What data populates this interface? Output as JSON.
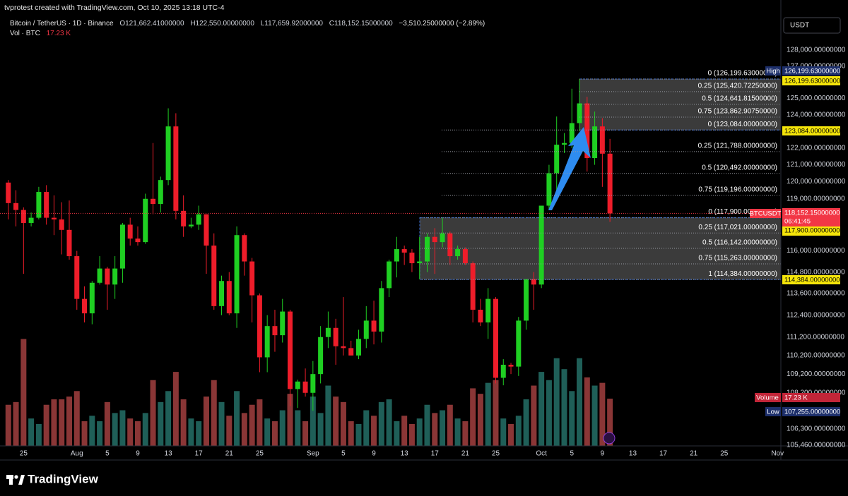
{
  "chart_data": {
    "type": "candlestick",
    "header": {
      "watermark": "tvprotest created with TradingView.com, Oct 10, 2025 13:18 UTC-4",
      "symbol": "Bitcoin / TetherUS · 1D · Binance",
      "open": "O121,662.41000000",
      "high": "H122,550.00000000",
      "low": "L117,659.92000000",
      "close": "C118,152.15000000",
      "change": "−3,510.25000000 (−2.89%)",
      "volume_label": "Vol · BTC",
      "volume_value": "17.23 K"
    },
    "currency_button": "USDT",
    "x": [
      "07-23",
      "07-24",
      "07-25",
      "07-26",
      "07-27",
      "07-28",
      "07-29",
      "07-30",
      "07-31",
      "08-01",
      "08-02",
      "08-03",
      "08-04",
      "08-05",
      "08-06",
      "08-07",
      "08-08",
      "08-09",
      "08-10",
      "08-11",
      "08-12",
      "08-13",
      "08-14",
      "08-15",
      "08-16",
      "08-17",
      "08-18",
      "08-19",
      "08-20",
      "08-21",
      "08-22",
      "08-23",
      "08-24",
      "08-25",
      "08-26",
      "08-27",
      "08-28",
      "08-29",
      "08-30",
      "08-31",
      "09-01",
      "09-02",
      "09-03",
      "09-04",
      "09-05",
      "09-06",
      "09-07",
      "09-08",
      "09-09",
      "09-10",
      "09-11",
      "09-12",
      "09-13",
      "09-14",
      "09-15",
      "09-16",
      "09-17",
      "09-18",
      "09-19",
      "09-20",
      "09-21",
      "09-22",
      "09-23",
      "09-24",
      "09-25",
      "09-26",
      "09-27",
      "09-28",
      "09-29",
      "09-30",
      "10-01",
      "10-02",
      "10-03",
      "10-04",
      "10-05",
      "10-06",
      "10-07",
      "10-08",
      "10-09",
      "10-10"
    ],
    "open": [
      119950,
      118750,
      118350,
      117600,
      117900,
      119400,
      117900,
      117800,
      117200,
      115700,
      113300,
      112500,
      114200,
      115000,
      114100,
      115000,
      117500,
      116700,
      116500,
      119000,
      118700,
      120100,
      123300,
      118300,
      117400,
      117500,
      118100,
      116300,
      112900,
      114300,
      112500,
      116900,
      115400,
      113500,
      110100,
      111800,
      111300,
      112600,
      108400,
      108800,
      108200,
      109200,
      111200,
      111700,
      110700,
      110600,
      110200,
      111100,
      112100,
      111500,
      113900,
      115400,
      116100,
      115900,
      115300,
      115400,
      116800,
      116500,
      117000,
      115700,
      116100,
      115300,
      112700,
      112000,
      113300,
      109000,
      109700,
      109600,
      112100,
      114400,
      114100,
      118600,
      120500,
      122200,
      122300,
      123500,
      124700,
      121400,
      123300,
      121662.41
    ],
    "high": [
      120100,
      119500,
      118500,
      118200,
      119700,
      119800,
      119200,
      118800,
      118900,
      116000,
      114000,
      114300,
      115700,
      115100,
      115700,
      117600,
      117900,
      117400,
      119300,
      122300,
      120300,
      124400,
      124100,
      119200,
      117900,
      118600,
      118100,
      117000,
      114600,
      114800,
      117400,
      117000,
      115600,
      113600,
      112400,
      112700,
      113300,
      112700,
      108900,
      109500,
      109900,
      111800,
      112600,
      112200,
      113400,
      111000,
      111600,
      112900,
      113200,
      114300,
      115500,
      116800,
      116300,
      116100,
      116800,
      117000,
      117300,
      117900,
      117100,
      116300,
      116200,
      115400,
      113300,
      113900,
      113400,
      110000,
      109800,
      112300,
      114400,
      114800,
      118600,
      121000,
      123900,
      122900,
      125600,
      126199.63,
      125100,
      124200,
      123800,
      122550
    ],
    "low": [
      117800,
      117400,
      114700,
      117400,
      117800,
      117500,
      116900,
      115800,
      115500,
      112700,
      112000,
      111900,
      114100,
      112700,
      113300,
      114200,
      116300,
      116300,
      116400,
      118100,
      118200,
      119800,
      117800,
      116800,
      117300,
      117200,
      114700,
      112700,
      112400,
      112400,
      111700,
      114600,
      112000,
      109300,
      109300,
      110400,
      110900,
      107500,
      107400,
      108000,
      107255,
      108700,
      110600,
      109700,
      110200,
      110200,
      110000,
      110600,
      110800,
      110900,
      113400,
      114500,
      115200,
      114800,
      114400,
      114800,
      114700,
      116200,
      115200,
      115500,
      115200,
      112000,
      111800,
      111100,
      108700,
      108600,
      109200,
      109100,
      111600,
      112700,
      113900,
      118400,
      119300,
      121700,
      122000,
      123000,
      120600,
      121000,
      119700,
      117659.92
    ],
    "close": [
      118750,
      118350,
      117600,
      117900,
      119400,
      117900,
      117800,
      117200,
      115700,
      113300,
      112500,
      114200,
      115000,
      114100,
      115000,
      117500,
      116700,
      116500,
      119000,
      118700,
      120100,
      123300,
      118300,
      117400,
      117500,
      118100,
      116300,
      112900,
      114300,
      112500,
      116900,
      115400,
      113500,
      110100,
      111800,
      111300,
      112600,
      108400,
      108800,
      108200,
      109200,
      111200,
      111700,
      110700,
      110600,
      110200,
      111100,
      112100,
      111500,
      113900,
      115400,
      116100,
      115900,
      115300,
      115400,
      116800,
      116500,
      117000,
      115700,
      116100,
      115300,
      112700,
      112000,
      113300,
      109000,
      109700,
      109600,
      112100,
      114400,
      114100,
      118600,
      120500,
      122200,
      122300,
      123500,
      124700,
      121400,
      123300,
      121662.41,
      118152.15
    ],
    "volume": [
      15,
      16,
      39,
      10,
      8,
      15,
      17,
      17,
      18,
      20,
      9,
      11,
      9,
      16,
      12,
      13,
      10,
      9,
      12,
      24,
      16,
      20,
      27,
      17,
      10,
      9,
      18,
      24,
      16,
      11,
      20,
      12,
      15,
      17,
      10,
      9,
      13,
      19,
      13,
      9,
      18,
      12,
      22,
      18,
      16,
      9,
      8,
      13,
      11,
      16,
      17,
      9,
      11,
      8,
      10,
      15,
      12,
      13,
      15,
      10,
      9,
      21,
      19,
      23,
      24,
      10,
      8,
      11,
      17,
      22,
      27,
      24,
      32,
      28,
      20,
      32,
      25,
      22,
      23,
      17.23
    ],
    "volume_ylim": [
      0,
      157
    ],
    "up_color": "#1fcf22",
    "down_color": "#ee1d2a",
    "volume_up_color": "#1f5f58",
    "volume_down_color": "#8a3636",
    "log": true,
    "grid": false,
    "xlim": [
      "07-22",
      "11-02"
    ],
    "ylim": [
      105420,
      130190
    ],
    "xticks": [
      {
        "value": "07-25",
        "label": "25"
      },
      {
        "value": "08-01",
        "label": "Aug"
      },
      {
        "value": "08-05",
        "label": "5"
      },
      {
        "value": "08-09",
        "label": "9"
      },
      {
        "value": "08-13",
        "label": "13"
      },
      {
        "value": "08-17",
        "label": "17"
      },
      {
        "value": "08-21",
        "label": "21"
      },
      {
        "value": "08-25",
        "label": "25"
      },
      {
        "value": "09-01",
        "label": "Sep"
      },
      {
        "value": "09-05",
        "label": "5"
      },
      {
        "value": "09-09",
        "label": "9"
      },
      {
        "value": "09-13",
        "label": "13"
      },
      {
        "value": "09-17",
        "label": "17"
      },
      {
        "value": "09-21",
        "label": "21"
      },
      {
        "value": "09-25",
        "label": "25"
      },
      {
        "value": "10-01",
        "label": "Oct"
      },
      {
        "value": "10-05",
        "label": "5"
      },
      {
        "value": "10-09",
        "label": "9"
      },
      {
        "value": "10-13",
        "label": "13"
      },
      {
        "value": "10-17",
        "label": "17"
      },
      {
        "value": "10-21",
        "label": "21"
      },
      {
        "value": "10-25",
        "label": "25"
      },
      {
        "value": "11-01",
        "label": "Nov"
      }
    ],
    "yticks": [
      {
        "value": 128000,
        "label": "128,000.00000000"
      },
      {
        "value": 127000,
        "label": "127,000.00000000"
      },
      {
        "value": 125000,
        "label": "125,000.00000000"
      },
      {
        "value": 124000,
        "label": "124,000.00000000"
      },
      {
        "value": 122000,
        "label": "122,000.00000000"
      },
      {
        "value": 121000,
        "label": "121,000.00000000"
      },
      {
        "value": 120000,
        "label": "120,000.00000000"
      },
      {
        "value": 119000,
        "label": "119,000.00000000"
      },
      {
        "value": 116000,
        "label": "116,000.00000000"
      },
      {
        "value": 114800,
        "label": "114,800.00000000"
      },
      {
        "value": 113600,
        "label": "113,600.00000000"
      },
      {
        "value": 112400,
        "label": "112,400.00000000"
      },
      {
        "value": 111200,
        "label": "111,200.00000000"
      },
      {
        "value": 110200,
        "label": "110,200.00000000"
      },
      {
        "value": 109200,
        "label": "109,200.00000000"
      },
      {
        "value": 108200,
        "label": "108,200.00000000"
      },
      {
        "value": 106300,
        "label": "106,300.00000000"
      },
      {
        "value": 105460,
        "label": "105,460.00000000"
      }
    ],
    "fibonacci": [
      {
        "levels": [
          {
            "value": 126199.63,
            "label": "0 (126,199.63000000)"
          },
          {
            "value": 125420.7225,
            "label": "0.25 (125,420.72250000)"
          },
          {
            "value": 124641.815,
            "label": "0.5 (124,641.81500000)"
          },
          {
            "value": 123862.9075,
            "label": "0.75 (123,862.90750000)"
          }
        ]
      },
      {
        "levels": [
          {
            "value": 123084,
            "label": "0 (123,084.00000000)"
          },
          {
            "value": 121788,
            "label": "0.25 (121,788.00000000)"
          },
          {
            "value": 120492,
            "label": "0.5 (120,492.00000000)"
          },
          {
            "value": 119196,
            "label": "0.75 (119,196.00000000)"
          }
        ]
      },
      {
        "levels": [
          {
            "value": 117900,
            "label": "0 (117,900.00000000)"
          },
          {
            "value": 117021,
            "label": "0.25 (117,021.00000000)"
          },
          {
            "value": 116142,
            "label": "0.5 (116,142.00000000)"
          },
          {
            "value": 115263,
            "label": "0.75 (115,263.00000000)"
          },
          {
            "value": 114384,
            "label": "1 (114,384.00000000)"
          }
        ]
      }
    ],
    "tags": {
      "high_label": "High",
      "high_value": "126,199.63000000",
      "fib_top": "126,199.63000000",
      "fib_mid": "123,084.00000000",
      "symbol": "BTCUSDT",
      "last_price": "118,152.15000000",
      "countdown": "06:41:45",
      "fib_low_top": "117,900.00000000",
      "fib_low_bottom": "114,384.00000000",
      "volume_label": "Volume",
      "volume_value": "17.23 K",
      "low_label": "Low",
      "low_value": "107,255.00000000"
    }
  },
  "footer": {
    "brand": "TradingView"
  }
}
